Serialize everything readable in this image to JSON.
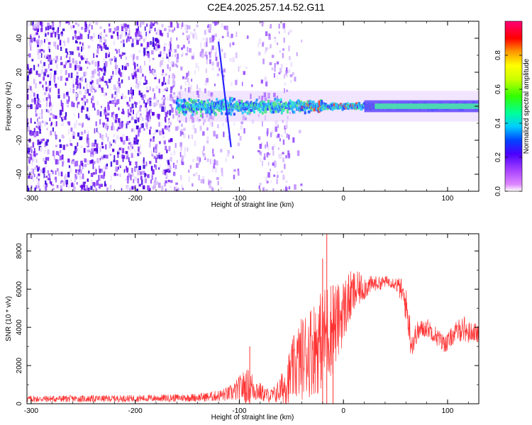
{
  "title": "C2E4.2025.257.14.52.G11",
  "colors": {
    "snr_line": "#ff3333",
    "axes": "#000000"
  },
  "chart_data": [
    {
      "type": "heatmap",
      "xlabel": "Height of straight line (km)",
      "ylabel": "Frequency (Hz)",
      "xlim": [
        -304,
        130
      ],
      "ylim": [
        -50,
        50
      ],
      "x_ticks": [
        -300,
        -200,
        -100,
        0,
        100
      ],
      "x_tick_labels": [
        "-300",
        "-200",
        "-100",
        "0",
        "100"
      ],
      "y_ticks": [
        -40,
        -20,
        0,
        20,
        40
      ],
      "y_tick_labels": [
        "-40",
        "-20",
        "0",
        "20",
        "40"
      ],
      "colorbar": {
        "label": "Normalized spectral amplitude",
        "range": [
          0,
          1
        ],
        "ticks": [
          0.0,
          0.2,
          0.4,
          0.6,
          0.8
        ],
        "tick_labels": [
          "0.0",
          "0.2",
          "0.4",
          "0.6",
          "0.8"
        ]
      },
      "features": [
        {
          "name": "signal band",
          "x_start": -160,
          "x_end": 130,
          "frequency": 0
        },
        {
          "name": "diagonal streak",
          "x_start": -120,
          "x_end": -108,
          "freq_start": 38,
          "freq_end": -24
        }
      ]
    },
    {
      "type": "line",
      "xlabel": "Height of straight line (km)",
      "ylabel": "SNR (10 * v/v)",
      "xlim": [
        -304,
        130
      ],
      "ylim": [
        0,
        8900
      ],
      "x_ticks": [
        -300,
        -200,
        -100,
        0,
        100
      ],
      "x_tick_labels": [
        "-300",
        "-200",
        "-100",
        "0",
        "100"
      ],
      "y_ticks": [
        0,
        2000,
        4000,
        6000,
        8000
      ],
      "y_tick_labels": [
        "0",
        "2000",
        "4000",
        "6000",
        "8000"
      ],
      "series": [
        {
          "name": "SNR",
          "x": [
            -304,
            -280,
            -260,
            -240,
            -220,
            -200,
            -180,
            -160,
            -140,
            -130,
            -120,
            -110,
            -105,
            -100,
            -95,
            -90,
            -85,
            -80,
            -75,
            -70,
            -65,
            -60,
            -55,
            -50,
            -45,
            -40,
            -35,
            -30,
            -25,
            -20,
            -15,
            -10,
            -5,
            0,
            5,
            10,
            15,
            20,
            25,
            30,
            35,
            40,
            45,
            50,
            55,
            60,
            63,
            65,
            68,
            70,
            75,
            80,
            85,
            90,
            95,
            100,
            105,
            110,
            115,
            120,
            125,
            130
          ],
          "mean": [
            250,
            260,
            260,
            260,
            270,
            280,
            290,
            310,
            330,
            360,
            420,
            520,
            620,
            780,
            900,
            950,
            800,
            620,
            480,
            420,
            520,
            750,
            1100,
            1600,
            2100,
            2400,
            2700,
            2900,
            3100,
            3400,
            3800,
            4000,
            4300,
            4900,
            5400,
            5800,
            6000,
            6100,
            6200,
            6300,
            6300,
            6400,
            6400,
            6300,
            6000,
            5200,
            4200,
            3200,
            3300,
            3700,
            3900,
            4000,
            3800,
            3500,
            3200,
            3200,
            3600,
            3800,
            4000,
            3700,
            3800,
            3600
          ],
          "amplitude": [
            180,
            180,
            180,
            180,
            180,
            180,
            190,
            200,
            220,
            250,
            300,
            400,
            500,
            700,
            900,
            900,
            700,
            500,
            400,
            350,
            500,
            800,
            1200,
            1600,
            2000,
            2200,
            2400,
            2500,
            2600,
            2600,
            2700,
            2500,
            2000,
            1700,
            1500,
            1200,
            900,
            700,
            500,
            400,
            350,
            300,
            300,
            350,
            600,
            900,
            1000,
            800,
            700,
            600,
            500,
            500,
            500,
            500,
            500,
            500,
            500,
            600,
            700,
            600,
            500,
            500
          ]
        }
      ],
      "spikes": [
        {
          "x": -16,
          "y": 8900
        },
        {
          "x": -20,
          "y": 7600
        },
        {
          "x": -10,
          "y": 6200
        },
        {
          "x": -90,
          "y": 3000
        }
      ]
    }
  ]
}
